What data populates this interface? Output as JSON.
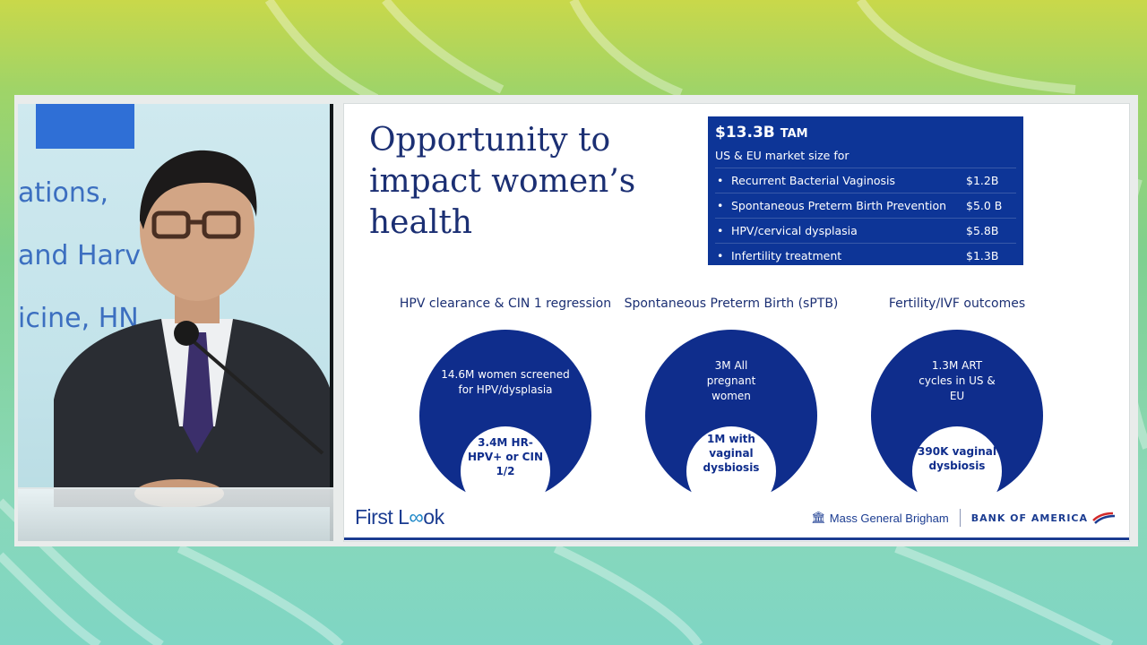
{
  "video": {
    "screen_lines": [
      "ations,",
      "and Harv",
      "icine, HN"
    ]
  },
  "slide": {
    "title": "Opportunity to impact women’s health",
    "tam": {
      "headline": "$13.3B",
      "headline_suffix": "TAM",
      "subtitle": "US & EU market size for",
      "items": [
        {
          "name": "Recurrent Bacterial Vaginosis",
          "value": "$1.2B"
        },
        {
          "name": "Spontaneous Preterm Birth Prevention",
          "value": "$5.0 B"
        },
        {
          "name": "HPV/cervical dysplasia",
          "value": "$5.8B"
        },
        {
          "name": "Infertility treatment",
          "value": "$1.3B"
        }
      ]
    },
    "columns": [
      {
        "title": "HPV clearance & CIN 1 regression",
        "outer": "14.6M women screened for HPV/dysplasia",
        "inner": "3.4M HR-HPV+ or CIN 1/2"
      },
      {
        "title": "Spontaneous Preterm Birth (sPTB)",
        "outer": "3M All pregnant women",
        "inner": "1M with vaginal dysbiosis"
      },
      {
        "title": "Fertility/IVF outcomes",
        "outer": "1.3M ART cycles in US & EU",
        "inner": "390K vaginal dysbiosis"
      }
    ],
    "footer": {
      "brand_left_a": "First L",
      "brand_left_b": "ok",
      "brand_mgb": "Mass General Brigham",
      "brand_boa": "BANK OF AMERICA"
    }
  },
  "colors": {
    "navy": "#0f2d8c",
    "title_blue": "#1b2f73",
    "accent": "#1e88c8"
  }
}
